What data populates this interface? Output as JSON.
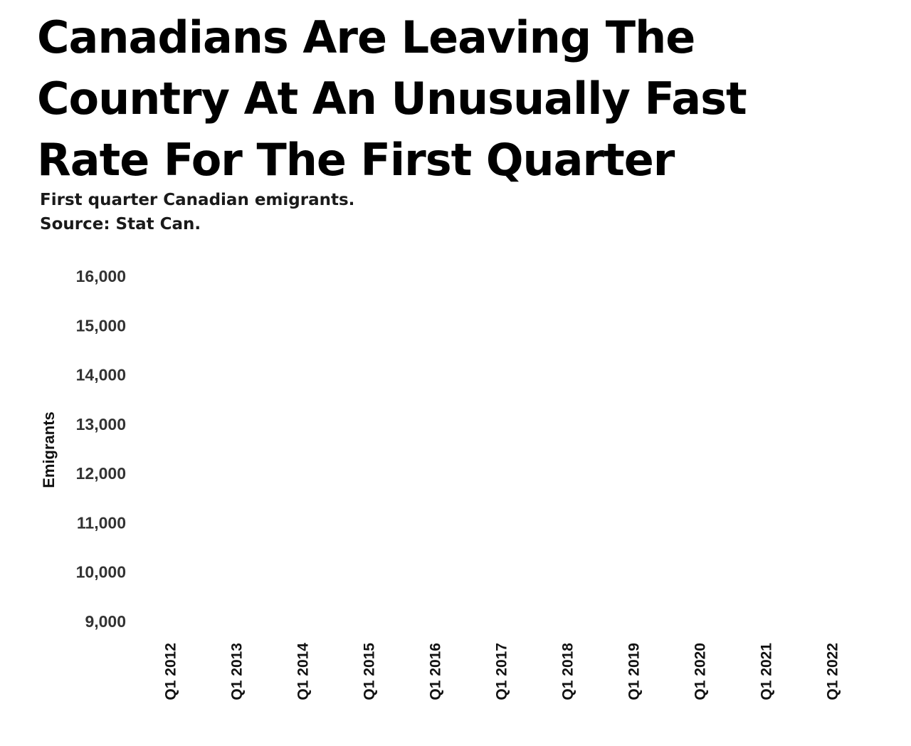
{
  "header": {
    "title_lines": [
      "Canadians Are Leaving The",
      "Country At An Unusually Fast",
      "Rate For The First Quarter"
    ],
    "subtitle_lines": [
      "First quarter Canadian emigrants.",
      "Source: Stat Can."
    ]
  },
  "chart_data": {
    "type": "line",
    "title": "Canadians Are Leaving The Country At An Unusually Fast Rate For The First Quarter",
    "subtitle": "First quarter Canadian emigrants. Source: Stat Can.",
    "xlabel": "",
    "ylabel": "Emigrants",
    "ylim": [
      9000,
      16000
    ],
    "y_ticks": [
      16000,
      15000,
      14000,
      13000,
      12000,
      11000,
      10000,
      9000
    ],
    "y_tick_labels": [
      "16,000",
      "15,000",
      "14,000",
      "13,000",
      "12,000",
      "11,000",
      "10,000",
      "9,000"
    ],
    "categories": [
      "Q1 2012",
      "Q1 2013",
      "Q1 2014",
      "Q1 2015",
      "Q1 2016",
      "Q1 2017",
      "Q1 2018",
      "Q1 2019",
      "Q1 2020",
      "Q1 2021",
      "Q1 2022"
    ],
    "series": [],
    "grid": false,
    "legend": "none"
  }
}
